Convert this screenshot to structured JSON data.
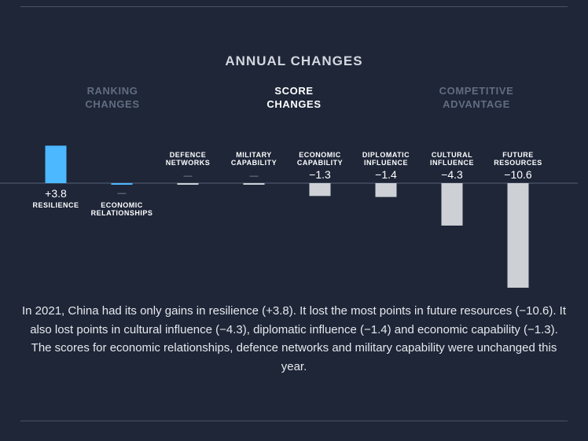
{
  "heading": "ANNUAL CHANGES",
  "tabs": [
    {
      "line1": "RANKING",
      "line2": "CHANGES",
      "active": false
    },
    {
      "line1": "SCORE",
      "line2": "CHANGES",
      "active": true
    },
    {
      "line1": "COMPETITIVE",
      "line2": "ADVANTAGE",
      "active": false
    }
  ],
  "chart_data": {
    "type": "bar",
    "categories": [
      {
        "line1": "RESILIENCE",
        "line2": "",
        "position": "below"
      },
      {
        "line1": "ECONOMIC",
        "line2": "RELATIONSHIPS",
        "position": "below"
      },
      {
        "line1": "DEFENCE",
        "line2": "NETWORKS",
        "position": "above"
      },
      {
        "line1": "MILITARY",
        "line2": "CAPABILITY",
        "position": "above"
      },
      {
        "line1": "ECONOMIC",
        "line2": "CAPABILITY",
        "position": "above"
      },
      {
        "line1": "DIPLOMATIC",
        "line2": "INFLUENCE",
        "position": "above"
      },
      {
        "line1": "CULTURAL",
        "line2": "INFLUENCE",
        "position": "above"
      },
      {
        "line1": "FUTURE",
        "line2": "RESOURCES",
        "position": "above"
      }
    ],
    "values": [
      3.8,
      0,
      0,
      0,
      -1.3,
      -1.4,
      -4.3,
      -10.6
    ],
    "value_labels": [
      "+3.8",
      "—",
      "—",
      "—",
      "−1.3",
      "−1.4",
      "−4.3",
      "−10.6"
    ],
    "colors": {
      "positive": "#4cb8ff",
      "negative": "#cdd1d6",
      "zero": "#cdd1d6",
      "zero_second": "#4cb8ff",
      "baseline": "#5a6478"
    }
  },
  "summary": "In 2021, China had its only gains in resilience (+3.8). It lost the most points in future resources (−10.6). It also lost points in cultural influence (−4.3), diplomatic influence (−1.4) and economic capability (−1.3). The scores for economic relationships, defence networks and military capability were unchanged this year."
}
